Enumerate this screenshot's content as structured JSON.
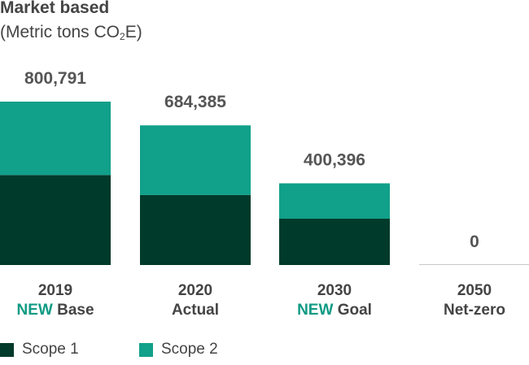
{
  "title": "Market based",
  "subtitle": {
    "prefix": "(Metric tons CO",
    "sub": "2",
    "suffix": "E)"
  },
  "colors": {
    "scope1": "#003a2a",
    "scope2": "#11a08a",
    "highlight": "#0f9a84",
    "baseline": "#c8c8c8"
  },
  "legend": [
    {
      "name": "Scope 1",
      "color": "#003a2a"
    },
    {
      "name": "Scope 2",
      "color": "#11a08a"
    }
  ],
  "chart_data": {
    "type": "bar",
    "stacked": true,
    "categories": [
      {
        "year": "2019",
        "highlight": "NEW",
        "label": "Base"
      },
      {
        "year": "2020",
        "highlight": "",
        "label": "Actual"
      },
      {
        "year": "2030",
        "highlight": "NEW",
        "label": "Goal"
      },
      {
        "year": "2050",
        "highlight": "",
        "label": "Net-zero"
      }
    ],
    "totals": [
      "800,791",
      "684,385",
      "400,396",
      "0"
    ],
    "series": [
      {
        "name": "Scope 1",
        "values": [
          441000,
          343000,
          227000,
          0
        ]
      },
      {
        "name": "Scope 2",
        "values": [
          359791,
          341385,
          173396,
          0
        ]
      }
    ],
    "ylim": [
      0,
      800791
    ]
  }
}
